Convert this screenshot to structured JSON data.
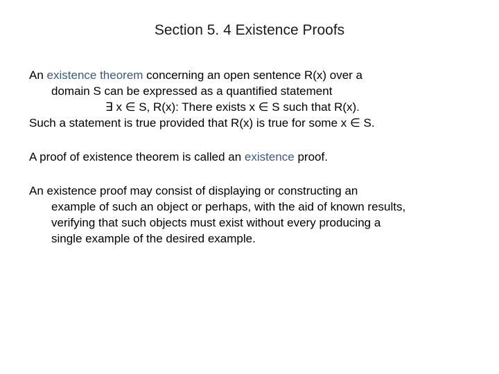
{
  "title": "Section 5. 4 Existence Proofs",
  "para1": {
    "line1a": "An ",
    "line1b": "existence theorem",
    "line1c": " concerning an open sentence R(x) over a",
    "line2": "domain S can be expressed as a quantified statement",
    "line3": "∃ x ∈ S, R(x): There exists x ∈ S such that R(x).",
    "line4": "Such a statement is true provided that R(x) is true for some x ∈ S."
  },
  "para2": {
    "text1": "A proof of existence theorem is called an ",
    "text2": "existence",
    "text3": " proof."
  },
  "para3": {
    "line1": "An existence proof may consist of displaying or constructing an",
    "line2": "example of such an object or perhaps, with the aid of known results,",
    "line3": "verifying that such objects must exist without every producing a",
    "line4": "single example of the desired example."
  },
  "colors": {
    "title_color": "#1a1a1a",
    "body_color": "#000000",
    "highlight_color": "#3b5a7a",
    "background": "#ffffff"
  },
  "typography": {
    "title_fontsize": 21,
    "body_fontsize": 17,
    "font_family": "Arial"
  }
}
